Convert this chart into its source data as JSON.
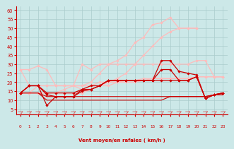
{
  "x": [
    0,
    1,
    2,
    3,
    4,
    5,
    6,
    7,
    8,
    9,
    10,
    11,
    12,
    13,
    14,
    15,
    16,
    17,
    18,
    19,
    20,
    21,
    22,
    23
  ],
  "series": [
    {
      "name": "pink_rising_high",
      "color": "#ffbbbb",
      "linewidth": 0.9,
      "marker": "D",
      "markersize": 1.8,
      "y": [
        14,
        14,
        14,
        14,
        14,
        16,
        18,
        18,
        20,
        25,
        30,
        32,
        35,
        42,
        45,
        52,
        53,
        56,
        50,
        50,
        50,
        null,
        null,
        null
      ]
    },
    {
      "name": "pink_rising_mid",
      "color": "#ffbbbb",
      "linewidth": 0.9,
      "marker": "D",
      "markersize": 1.8,
      "y": [
        14,
        14,
        14,
        14,
        14,
        14,
        14,
        14,
        16,
        18,
        20,
        22,
        25,
        30,
        35,
        40,
        45,
        48,
        50,
        50,
        50,
        null,
        null,
        null
      ]
    },
    {
      "name": "pink_flat_high",
      "color": "#ffbbbb",
      "linewidth": 0.9,
      "marker": "D",
      "markersize": 1.8,
      "y": [
        27,
        27,
        29,
        27,
        18,
        18,
        18,
        30,
        27,
        30,
        30,
        30,
        30,
        30,
        30,
        30,
        30,
        30,
        30,
        30,
        32,
        32,
        23,
        23
      ]
    },
    {
      "name": "pink_flat_mid",
      "color": "#ffbbbb",
      "linewidth": 0.9,
      "marker": "D",
      "markersize": 1.8,
      "y": [
        27,
        18,
        18,
        18,
        18,
        18,
        18,
        16,
        18,
        20,
        20,
        20,
        21,
        21,
        22,
        22,
        22,
        22,
        22,
        22,
        23,
        23,
        23,
        23
      ]
    },
    {
      "name": "pink_flat_low",
      "color": "#ffbbbb",
      "linewidth": 0.9,
      "marker": "D",
      "markersize": 1.8,
      "y": [
        14,
        14,
        18,
        18,
        18,
        18,
        18,
        18,
        18,
        18,
        18,
        20,
        20,
        20,
        21,
        22,
        22,
        22,
        22,
        22,
        23,
        23,
        23,
        23
      ]
    },
    {
      "name": "red_upper",
      "color": "#cc0000",
      "linewidth": 0.9,
      "marker": "D",
      "markersize": 1.8,
      "y": [
        14,
        18,
        18,
        14,
        14,
        14,
        14,
        16,
        18,
        18,
        21,
        21,
        21,
        21,
        21,
        21,
        32,
        32,
        26,
        25,
        24,
        11,
        13,
        14
      ]
    },
    {
      "name": "red_mid1",
      "color": "#cc0000",
      "linewidth": 0.9,
      "marker": "D",
      "markersize": 1.8,
      "y": [
        14,
        18,
        18,
        13,
        12,
        12,
        12,
        16,
        16,
        18,
        21,
        21,
        21,
        21,
        21,
        21,
        27,
        27,
        21,
        21,
        23,
        11,
        13,
        14
      ]
    },
    {
      "name": "red_mid2",
      "color": "#cc0000",
      "linewidth": 0.9,
      "marker": "D",
      "markersize": 1.8,
      "y": [
        14,
        18,
        18,
        7,
        12,
        12,
        12,
        15,
        16,
        18,
        21,
        21,
        21,
        21,
        21,
        21,
        21,
        21,
        21,
        21,
        23,
        11,
        13,
        14
      ]
    },
    {
      "name": "red_low1",
      "color": "#cc0000",
      "linewidth": 0.8,
      "marker": null,
      "markersize": 0,
      "y": [
        14,
        14,
        14,
        10,
        10,
        10,
        10,
        10,
        10,
        10,
        10,
        10,
        10,
        10,
        10,
        10,
        10,
        12,
        12,
        12,
        12,
        12,
        13,
        13
      ]
    },
    {
      "name": "red_low2",
      "color": "#cc0000",
      "linewidth": 0.8,
      "marker": null,
      "markersize": 0,
      "y": [
        14,
        14,
        14,
        12,
        12,
        12,
        12,
        12,
        12,
        12,
        12,
        12,
        12,
        12,
        12,
        12,
        12,
        12,
        12,
        12,
        12,
        12,
        13,
        13
      ]
    }
  ],
  "xlim": [
    -0.5,
    23.5
  ],
  "ylim": [
    2,
    62
  ],
  "yticks": [
    5,
    10,
    15,
    20,
    25,
    30,
    35,
    40,
    45,
    50,
    55,
    60
  ],
  "xticks": [
    0,
    1,
    2,
    3,
    4,
    5,
    6,
    7,
    8,
    9,
    10,
    11,
    12,
    13,
    14,
    15,
    16,
    17,
    18,
    19,
    20,
    21,
    22,
    23
  ],
  "xlabel": "Vent moyen/en rafales ( km/h )",
  "bgcolor": "#cce8e8",
  "grid_color": "#aacccc",
  "axis_color": "#cc0000",
  "label_color": "#cc0000",
  "arrow_color": "#dd4444"
}
